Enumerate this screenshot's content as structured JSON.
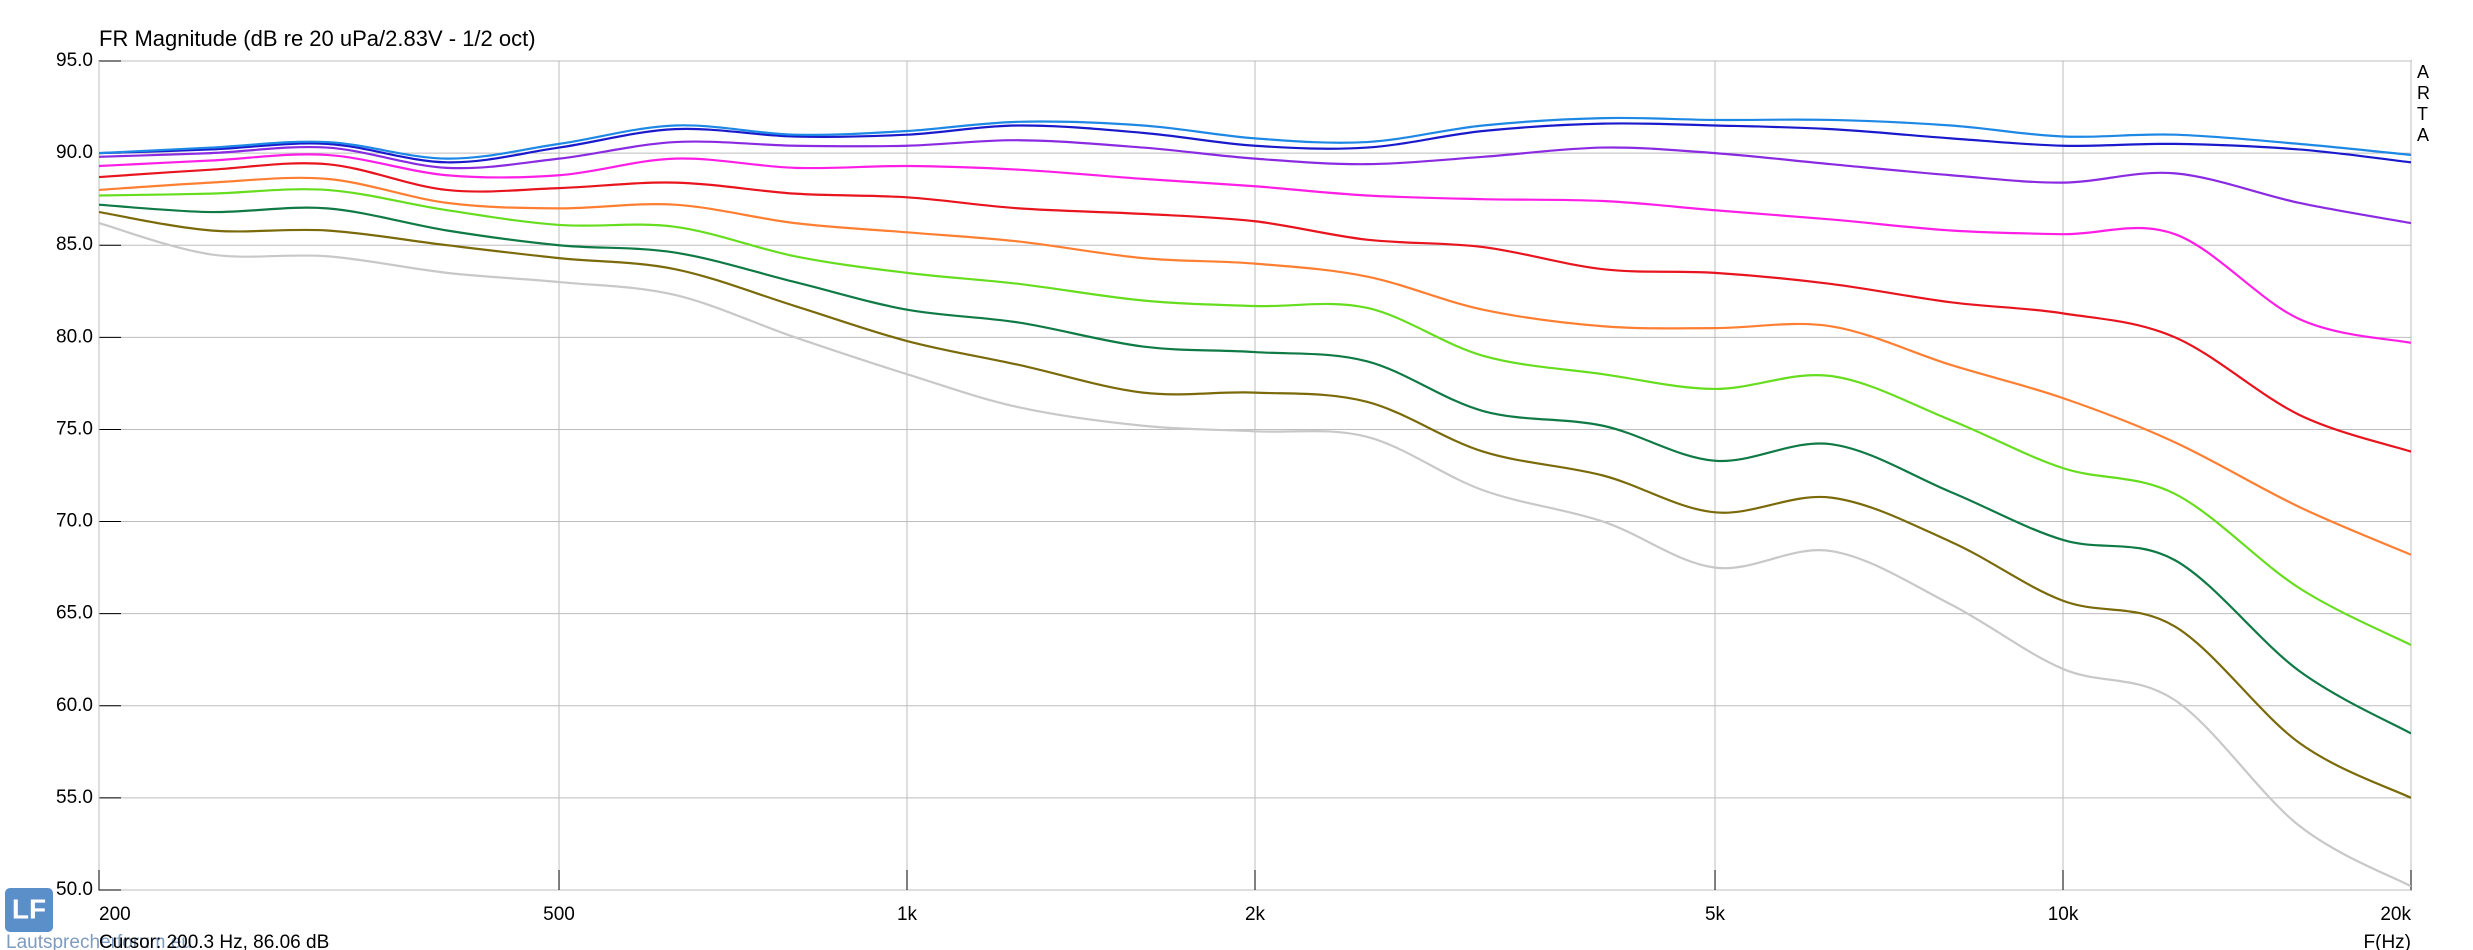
{
  "chart_data": {
    "type": "line",
    "title": "FR Magnitude (dB re 20 uPa/2.83V - 1/2 oct)",
    "x_label": "F(Hz)",
    "cursor_text": "Cursor: 200.3 Hz, 86.06 dB",
    "brand": "ARTA",
    "logo": "LF",
    "watermark": "Lautsprecherforum.eu",
    "x_scale": "log",
    "grid": true,
    "xlim": [
      200,
      20000
    ],
    "ylim": [
      50,
      95
    ],
    "xticks": [
      200,
      500,
      {
        "value": 1000,
        "label": "1k"
      },
      {
        "value": 2000,
        "label": "2k"
      },
      {
        "value": 5000,
        "label": "5k"
      },
      {
        "value": 10000,
        "label": "10k"
      },
      {
        "value": 20000,
        "label": "20k"
      }
    ],
    "yticks": [
      {
        "value": 50,
        "label": "50.0"
      },
      {
        "value": 55,
        "label": "55.0"
      },
      {
        "value": 60,
        "label": "60.0"
      },
      {
        "value": 65,
        "label": "65.0"
      },
      {
        "value": 70,
        "label": "70.0"
      },
      {
        "value": 75,
        "label": "75.0"
      },
      {
        "value": 80,
        "label": "80.0"
      },
      {
        "value": 85,
        "label": "85.0"
      },
      {
        "value": 90,
        "label": "90.0"
      },
      {
        "value": 95,
        "label": "95.0"
      }
    ],
    "x": [
      200,
      250,
      315,
      400,
      500,
      630,
      800,
      1000,
      1250,
      1600,
      2000,
      2500,
      3150,
      4000,
      5000,
      6300,
      8000,
      10000,
      12500,
      16000,
      20000
    ],
    "series": [
      {
        "color": "#1e88e5",
        "values": [
          90.0,
          90.3,
          90.6,
          89.7,
          90.5,
          91.5,
          91.0,
          91.2,
          91.7,
          91.5,
          90.8,
          90.6,
          91.5,
          91.9,
          91.8,
          91.8,
          91.5,
          90.9,
          91.0,
          90.5,
          89.9
        ]
      },
      {
        "color": "#1a1acc",
        "values": [
          90.0,
          90.2,
          90.5,
          89.5,
          90.3,
          91.3,
          90.9,
          91.0,
          91.5,
          91.1,
          90.4,
          90.3,
          91.2,
          91.6,
          91.5,
          91.3,
          90.8,
          90.4,
          90.5,
          90.2,
          89.5
        ]
      },
      {
        "color": "#8a2be2",
        "values": [
          89.8,
          90.0,
          90.3,
          89.2,
          89.7,
          90.6,
          90.4,
          90.4,
          90.7,
          90.3,
          89.7,
          89.4,
          89.8,
          90.3,
          90.0,
          89.4,
          88.8,
          88.4,
          88.9,
          87.3,
          86.2
        ]
      },
      {
        "color": "#ff1ee6",
        "values": [
          89.3,
          89.6,
          89.9,
          88.8,
          88.8,
          89.7,
          89.2,
          89.3,
          89.1,
          88.6,
          88.2,
          87.7,
          87.5,
          87.4,
          86.9,
          86.4,
          85.8,
          85.6,
          85.6,
          81.0,
          79.7
        ]
      },
      {
        "color": "#e8141e",
        "values": [
          88.7,
          89.1,
          89.4,
          88.0,
          88.1,
          88.4,
          87.8,
          87.6,
          87.0,
          86.7,
          86.3,
          85.3,
          84.9,
          83.7,
          83.5,
          82.9,
          81.9,
          81.3,
          80.0,
          75.8,
          73.8
        ]
      },
      {
        "color": "#ff7f32",
        "values": [
          88.0,
          88.4,
          88.6,
          87.3,
          87.0,
          87.2,
          86.2,
          85.7,
          85.2,
          84.3,
          84.0,
          83.3,
          81.5,
          80.6,
          80.5,
          80.6,
          78.5,
          76.7,
          74.3,
          70.8,
          68.2
        ]
      },
      {
        "color": "#66dd1e",
        "values": [
          87.7,
          87.8,
          88.0,
          86.9,
          86.1,
          86.0,
          84.4,
          83.5,
          82.9,
          82.0,
          81.7,
          81.6,
          79.0,
          78.0,
          77.2,
          77.9,
          75.5,
          72.9,
          71.5,
          66.4,
          63.3
        ]
      },
      {
        "color": "#0f7a45",
        "values": [
          87.2,
          86.8,
          87.0,
          85.8,
          85.0,
          84.6,
          83.0,
          81.5,
          80.8,
          79.5,
          79.2,
          78.7,
          76.0,
          75.2,
          73.3,
          74.2,
          71.6,
          69.0,
          67.9,
          61.9,
          58.5
        ]
      },
      {
        "color": "#7a6a0a",
        "values": [
          86.8,
          85.8,
          85.8,
          85.0,
          84.3,
          83.7,
          81.7,
          79.8,
          78.5,
          77.0,
          77.0,
          76.5,
          73.8,
          72.5,
          70.5,
          71.3,
          68.9,
          65.7,
          64.3,
          58.0,
          55.0
        ]
      },
      {
        "color": "#c8c8c8",
        "values": [
          86.2,
          84.5,
          84.4,
          83.5,
          83.0,
          82.3,
          80.0,
          78.0,
          76.2,
          75.2,
          74.9,
          74.6,
          71.7,
          70.0,
          67.5,
          68.4,
          65.5,
          62.0,
          60.3,
          53.5,
          50.2
        ]
      }
    ]
  }
}
